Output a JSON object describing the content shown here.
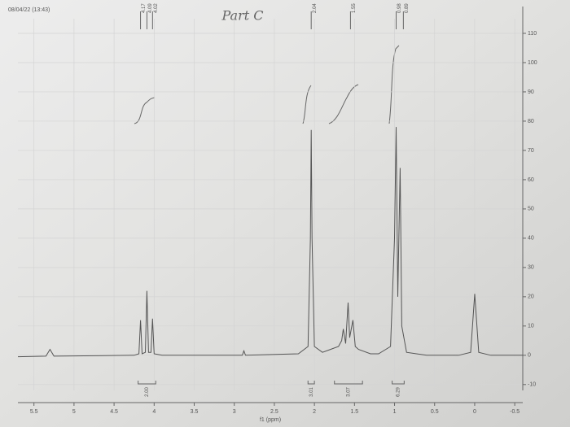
{
  "chart_data": {
    "type": "line",
    "title": "Part C",
    "timestamp": "08/04/22 (13:43)",
    "x_label": "f1 (ppm)",
    "xlim": [
      5.7,
      -0.6
    ],
    "xticks": [
      5.5,
      5.0,
      4.5,
      4.0,
      3.5,
      3.0,
      2.5,
      2.0,
      1.5,
      1.0,
      0.5,
      0.0,
      -0.5
    ],
    "ylim": [
      -12,
      115
    ],
    "yticks": [
      -10,
      0,
      10,
      20,
      30,
      40,
      50,
      60,
      70,
      80,
      90,
      100,
      110
    ],
    "grid": true,
    "x": [
      5.7,
      5.35,
      5.3,
      5.25,
      4.25,
      4.19,
      4.17,
      4.15,
      4.11,
      4.09,
      4.07,
      4.04,
      4.02,
      4.0,
      3.9,
      2.9,
      2.88,
      2.86,
      2.2,
      2.08,
      2.05,
      2.04,
      2.03,
      2.0,
      1.9,
      1.8,
      1.7,
      1.66,
      1.64,
      1.61,
      1.58,
      1.56,
      1.52,
      1.49,
      1.45,
      1.3,
      1.2,
      1.05,
      1.0,
      0.98,
      0.96,
      0.93,
      0.91,
      0.85,
      0.6,
      0.2,
      0.05,
      0.0,
      -0.05,
      -0.2,
      -0.6
    ],
    "series": [
      {
        "color": "#555555",
        "values": [
          -0.5,
          -0.3,
          2,
          -0.3,
          0,
          0.5,
          12,
          0.5,
          1,
          22,
          1,
          1,
          12.5,
          0.5,
          0,
          0,
          1.5,
          0,
          0.5,
          3,
          40,
          77,
          40,
          3,
          1,
          2,
          3,
          5,
          9,
          4,
          18,
          6,
          12,
          3,
          2,
          0.5,
          0.5,
          3,
          40,
          78,
          20,
          64,
          10,
          1,
          0,
          0,
          1,
          21,
          1,
          0,
          0
        ]
      }
    ],
    "peak_labels": [
      4.17,
      4.09,
      4.02,
      2.04,
      1.55,
      0.98,
      0.89
    ],
    "integrals": [
      {
        "from": 4.2,
        "to": 3.98,
        "label": "2.00"
      },
      {
        "from": 2.08,
        "to": 2.0,
        "label": "3.01"
      },
      {
        "from": 1.75,
        "to": 1.4,
        "label": "3.07"
      },
      {
        "from": 1.03,
        "to": 0.88,
        "label": "6.29"
      }
    ]
  }
}
